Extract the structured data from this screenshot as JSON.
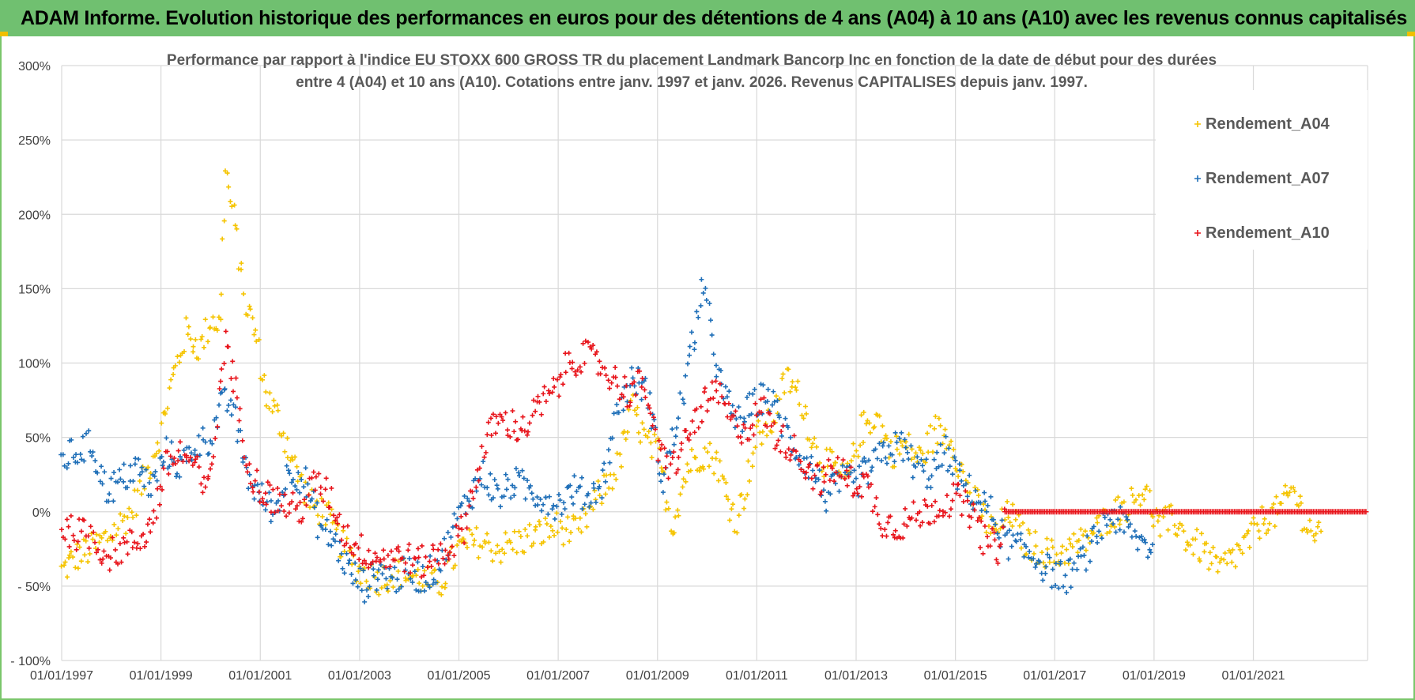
{
  "header": {
    "title": "ADAM Informe. Evolution historique des performances en euros pour des détentions de 4 ans (A04) à 10 ans (A10) avec les revenus connus capitalisés"
  },
  "colors": {
    "banner": "#70c070",
    "grid": "#d9d9d9",
    "axis_text": "#404040",
    "title_text": "#595959",
    "A04": "#f5c400",
    "A07": "#1f6fb8",
    "A10": "#e8141b"
  },
  "chart_data": {
    "type": "scatter",
    "title_line1": "Performance par rapport à l'indice EU STOXX 600 GROSS TR  du placement Landmark Bancorp Inc en fonction de la date de début pour des durées",
    "title_line2": "entre 4 (A04) et 10 ans (A10).  Cotations entre janv. 1997 et janv. 2026. Revenus CAPITALISES  depuis janv. 1997.",
    "xlabel": "",
    "ylabel": "",
    "x_range": [
      1997.0,
      2023.3
    ],
    "ylim": [
      -100,
      300
    ],
    "y_ticks": [
      300,
      250,
      200,
      150,
      100,
      50,
      0,
      -50,
      -100
    ],
    "y_tick_labels": [
      "300%",
      "250%",
      "200%",
      "150%",
      "100%",
      "50%",
      "0%",
      "- 50%",
      "- 100%"
    ],
    "x_ticks": [
      1997,
      1999,
      2001,
      2003,
      2005,
      2007,
      2009,
      2011,
      2013,
      2015,
      2017,
      2019,
      2021
    ],
    "x_tick_labels": [
      "01/01/1997",
      "01/01/1999",
      "01/01/2001",
      "01/01/2003",
      "01/01/2005",
      "01/01/2007",
      "01/01/2009",
      "01/01/2011",
      "01/01/2013",
      "01/01/2015",
      "01/01/2017",
      "01/01/2019",
      "01/01/2021"
    ],
    "grid": true,
    "legend_position": "top-right",
    "series": [
      {
        "name": "Rendement_A04",
        "color": "#f5c400",
        "x": [
          1997.0,
          1997.3,
          1997.6,
          1998.0,
          1998.4,
          1998.7,
          1999.0,
          1999.2,
          1999.5,
          1999.8,
          2000.0,
          2000.2,
          2000.3,
          2000.5,
          2000.7,
          2000.9,
          2001.1,
          2001.4,
          2001.7,
          2002.0,
          2002.3,
          2002.6,
          2003.0,
          2003.4,
          2003.8,
          2004.2,
          2004.6,
          2005.0,
          2005.4,
          2005.8,
          2006.2,
          2006.6,
          2007.0,
          2007.4,
          2007.8,
          2008.2,
          2008.5,
          2008.8,
          2009.0,
          2009.3,
          2009.6,
          2009.9,
          2010.2,
          2010.4,
          2010.6,
          2010.8,
          2011.0,
          2011.3,
          2011.6,
          2011.9,
          2012.2,
          2012.5,
          2012.8,
          2013.1,
          2013.4,
          2013.7,
          2014.0,
          2014.3,
          2014.6,
          2014.9,
          2015.2,
          2015.5,
          2015.8,
          2016.1,
          2016.4,
          2016.7,
          2017.0,
          2017.3,
          2017.6,
          2017.9,
          2018.2,
          2018.5,
          2018.8,
          2019.1,
          2019.4,
          2019.7,
          2020.0,
          2020.3,
          2020.6,
          2020.9,
          2021.2,
          2021.5,
          2021.8,
          2022.1,
          2022.4
        ],
        "y": [
          -40,
          -30,
          -25,
          -15,
          0,
          25,
          55,
          85,
          120,
          110,
          130,
          125,
          230,
          190,
          140,
          120,
          80,
          60,
          30,
          5,
          0,
          -20,
          -40,
          -45,
          -40,
          -45,
          -50,
          -25,
          -20,
          -25,
          -20,
          -15,
          -10,
          -15,
          10,
          30,
          70,
          45,
          40,
          -10,
          30,
          40,
          35,
          10,
          -5,
          20,
          50,
          60,
          90,
          75,
          40,
          30,
          20,
          55,
          65,
          40,
          45,
          35,
          55,
          50,
          20,
          0,
          -15,
          0,
          -20,
          -25,
          -30,
          -25,
          -20,
          -10,
          0,
          5,
          15,
          -10,
          -5,
          -20,
          -25,
          -40,
          -30,
          -20,
          -5,
          0,
          15,
          -10,
          -20
        ]
      },
      {
        "name": "Rendement_A07",
        "color": "#1f6fb8",
        "x": [
          1997.0,
          1997.3,
          1997.6,
          1997.9,
          1998.2,
          1998.5,
          1998.8,
          1999.1,
          1999.4,
          1999.7,
          2000.0,
          2000.2,
          2000.4,
          2000.6,
          2000.8,
          2001.0,
          2001.3,
          2001.6,
          2001.9,
          2002.2,
          2002.5,
          2002.8,
          2003.1,
          2003.4,
          2003.7,
          2004.0,
          2004.3,
          2004.6,
          2004.9,
          2005.2,
          2005.5,
          2005.8,
          2006.1,
          2006.4,
          2006.7,
          2007.0,
          2007.3,
          2007.6,
          2007.9,
          2008.2,
          2008.5,
          2008.8,
          2009.1,
          2009.4,
          2009.7,
          2009.9,
          2010.1,
          2010.3,
          2010.6,
          2010.9,
          2011.2,
          2011.5,
          2011.8,
          2012.1,
          2012.4,
          2012.7,
          2013.0,
          2013.3,
          2013.6,
          2013.9,
          2014.2,
          2014.5,
          2014.8,
          2015.1,
          2015.4,
          2015.7,
          2016.0,
          2016.3,
          2016.6,
          2016.9,
          2017.2,
          2017.5,
          2017.8,
          2018.1,
          2018.4,
          2018.7,
          2019.0
        ],
        "y": [
          35,
          40,
          45,
          15,
          20,
          30,
          15,
          40,
          30,
          45,
          50,
          70,
          75,
          45,
          20,
          10,
          0,
          30,
          20,
          -10,
          -20,
          -40,
          -50,
          -40,
          -45,
          -40,
          -45,
          -35,
          -10,
          10,
          25,
          10,
          20,
          15,
          10,
          5,
          15,
          10,
          20,
          70,
          90,
          80,
          20,
          60,
          110,
          150,
          120,
          80,
          60,
          70,
          80,
          60,
          40,
          30,
          10,
          20,
          20,
          30,
          40,
          45,
          30,
          25,
          40,
          20,
          10,
          0,
          -20,
          -25,
          -30,
          -40,
          -45,
          -35,
          -20,
          0,
          -10,
          -20,
          -25
        ]
      },
      {
        "name": "Rendement_A10",
        "color": "#e8141b",
        "x": [
          1997.0,
          1997.3,
          1997.6,
          1997.9,
          1998.2,
          1998.5,
          1998.8,
          1999.1,
          1999.4,
          1999.7,
          1999.9,
          2000.1,
          2000.3,
          2000.5,
          2000.7,
          2000.9,
          2001.2,
          2001.5,
          2001.8,
          2002.1,
          2002.4,
          2002.7,
          2003.0,
          2003.3,
          2003.6,
          2003.9,
          2004.2,
          2004.5,
          2004.8,
          2005.1,
          2005.4,
          2005.7,
          2006.0,
          2006.3,
          2006.6,
          2006.9,
          2007.2,
          2007.5,
          2007.8,
          2008.1,
          2008.4,
          2008.6,
          2008.8,
          2009.0,
          2009.3,
          2009.6,
          2009.9,
          2010.2,
          2010.5,
          2010.8,
          2011.1,
          2011.4,
          2011.7,
          2012.0,
          2012.3,
          2012.6,
          2012.9,
          2013.2,
          2013.5,
          2013.8,
          2014.1,
          2014.4,
          2014.7,
          2015.0,
          2015.3,
          2015.6,
          2015.9,
          2016.0,
          2017.0,
          2018.0,
          2019.0,
          2020.0,
          2021.0,
          2022.0,
          2023.0,
          2023.3
        ],
        "y": [
          -10,
          -15,
          -15,
          -30,
          -25,
          -20,
          -10,
          30,
          40,
          30,
          10,
          50,
          120,
          80,
          40,
          20,
          10,
          5,
          0,
          20,
          10,
          -15,
          -25,
          -30,
          -30,
          -30,
          -35,
          -30,
          -25,
          -10,
          30,
          60,
          60,
          55,
          70,
          80,
          100,
          105,
          100,
          90,
          80,
          85,
          80,
          40,
          30,
          50,
          70,
          80,
          60,
          55,
          70,
          50,
          45,
          30,
          20,
          30,
          20,
          20,
          -5,
          -10,
          -5,
          0,
          5,
          10,
          0,
          -20,
          -25,
          0,
          0,
          0,
          0,
          0,
          0,
          0,
          0,
          0
        ]
      }
    ]
  }
}
